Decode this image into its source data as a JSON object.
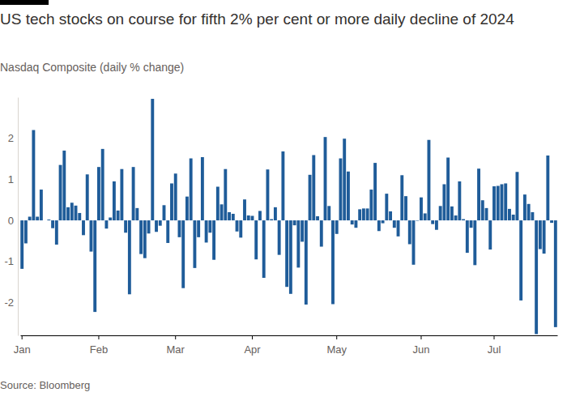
{
  "chart_data": {
    "type": "bar",
    "title": "US tech stocks on course for fifth 2% per cent or more daily decline of 2024",
    "subtitle": "Nasdaq Composite (daily % change)",
    "source": "Source: Bloomberg",
    "categories": [
      "Jan",
      null,
      null,
      null,
      null,
      null,
      null,
      null,
      null,
      null,
      null,
      null,
      null,
      null,
      null,
      null,
      null,
      null,
      null,
      null,
      "Feb",
      null,
      null,
      null,
      null,
      null,
      null,
      null,
      null,
      null,
      null,
      null,
      null,
      null,
      null,
      null,
      null,
      null,
      null,
      null,
      "Mar",
      null,
      null,
      null,
      null,
      null,
      null,
      null,
      null,
      null,
      null,
      null,
      null,
      null,
      null,
      null,
      null,
      null,
      null,
      null,
      "Apr",
      null,
      null,
      null,
      null,
      null,
      null,
      null,
      null,
      null,
      null,
      null,
      null,
      null,
      null,
      null,
      null,
      null,
      null,
      null,
      null,
      null,
      "May",
      null,
      null,
      null,
      null,
      null,
      null,
      null,
      null,
      null,
      null,
      null,
      null,
      null,
      null,
      null,
      null,
      null,
      null,
      null,
      null,
      null,
      "Jun",
      null,
      null,
      null,
      null,
      null,
      null,
      null,
      null,
      null,
      null,
      null,
      null,
      null,
      null,
      null,
      null,
      null,
      null,
      "Jul",
      null,
      null,
      null,
      null,
      null,
      null,
      null,
      null,
      null,
      null,
      null,
      null,
      null,
      null,
      null,
      null
    ],
    "values": [
      -1.18,
      -0.56,
      0.09,
      2.2,
      0.09,
      0.75,
      0.0,
      0.02,
      -0.19,
      -0.59,
      1.35,
      1.7,
      0.32,
      0.43,
      0.36,
      0.18,
      -0.36,
      1.12,
      -0.76,
      -2.23,
      1.3,
      1.74,
      -0.2,
      0.07,
      0.95,
      0.24,
      1.25,
      -0.3,
      -1.8,
      1.3,
      0.3,
      -0.82,
      -0.92,
      -0.32,
      2.96,
      -0.28,
      -0.13,
      0.37,
      -0.55,
      0.9,
      1.14,
      -0.41,
      -1.65,
      0.58,
      1.51,
      -1.16,
      -0.41,
      1.54,
      -0.54,
      -0.3,
      -0.96,
      0.82,
      0.39,
      1.25,
      0.2,
      0.16,
      -0.27,
      -0.42,
      0.51,
      0.12,
      0.11,
      -0.95,
      0.23,
      -1.4,
      1.24,
      0.03,
      0.32,
      -0.84,
      1.68,
      -1.62,
      -1.79,
      -0.12,
      -1.15,
      -0.52,
      -2.05,
      1.11,
      1.59,
      0.1,
      -0.64,
      2.03,
      0.35,
      -2.04,
      -0.33,
      1.51,
      1.99,
      1.19,
      -0.1,
      -0.18,
      0.27,
      0.29,
      0.29,
      0.75,
      1.4,
      -0.26,
      -0.07,
      0.65,
      0.22,
      -0.18,
      -0.39,
      1.1,
      0.59,
      -0.58,
      -1.08,
      -0.01,
      0.56,
      0.17,
      1.96,
      -0.09,
      -0.23,
      0.35,
      0.88,
      1.53,
      0.34,
      0.12,
      0.95,
      0.03,
      -0.79,
      -0.18,
      -1.09,
      1.26,
      0.49,
      0.3,
      -0.71,
      0.83,
      0.84,
      0.88,
      0.9,
      0.28,
      0.14,
      1.18,
      -1.95,
      0.63,
      0.4,
      0.2,
      -2.77,
      -0.7,
      -0.81,
      1.58,
      -0.06,
      -2.6
    ],
    "color": "#1f5c99",
    "ylim": [
      -2.8,
      3.0
    ],
    "yticks": [
      -2,
      -1,
      0,
      1,
      2
    ],
    "grid": false
  }
}
